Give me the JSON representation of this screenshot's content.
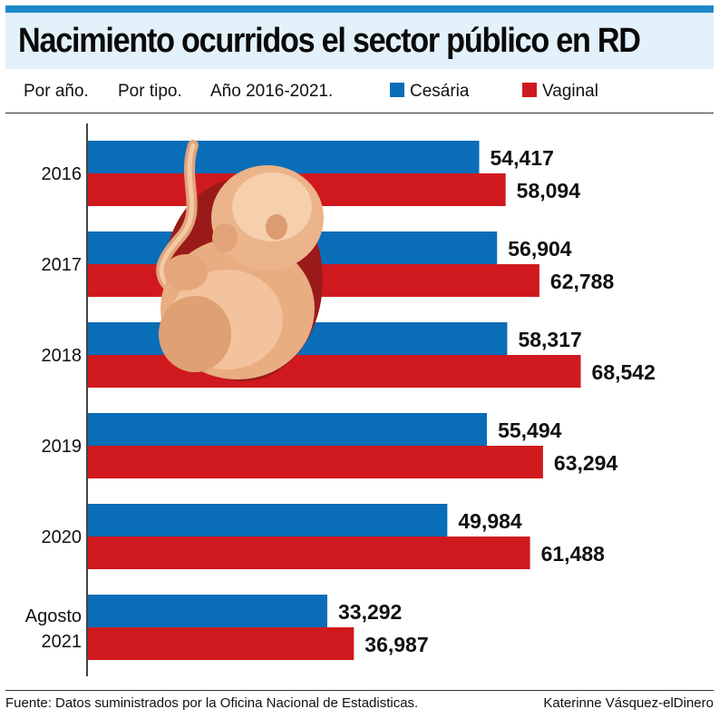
{
  "header": {
    "title": "Nacimiento ocurridos el sector público en RD",
    "subtitles": [
      "Por año.",
      "Por tipo.",
      "Año 2016-2021."
    ]
  },
  "colors": {
    "accent": "#1e88c8",
    "title_bg": "#e3f1fa",
    "cesarea": "#0a6db8",
    "vaginal": "#d0191f"
  },
  "decoration": {
    "icon": "fetus-illustration"
  },
  "chart_data": {
    "type": "bar",
    "orientation": "horizontal",
    "categories": [
      "2016",
      "2017",
      "2018",
      "2019",
      "2020",
      "Agosto\n2021"
    ],
    "series": [
      {
        "name": "Cesária",
        "values": [
          54417,
          56904,
          58317,
          55494,
          49984,
          33292
        ],
        "labels": [
          "54,417",
          "56,904",
          "58,317",
          "55,494",
          "49,984",
          "33,292"
        ]
      },
      {
        "name": "Vaginal",
        "values": [
          58094,
          62788,
          68542,
          63294,
          61488,
          36987
        ],
        "labels": [
          "58,094",
          "62,788",
          "68,542",
          "63,294",
          "61,488",
          "36,987"
        ]
      }
    ],
    "xlim": [
      0,
      110000
    ],
    "grid": false,
    "legend": "top"
  },
  "footer": {
    "source": "Fuente: Datos suministrados por la Oficina Nacional de Estadisticas.",
    "credit": "Katerinne Vásquez-elDinero"
  }
}
